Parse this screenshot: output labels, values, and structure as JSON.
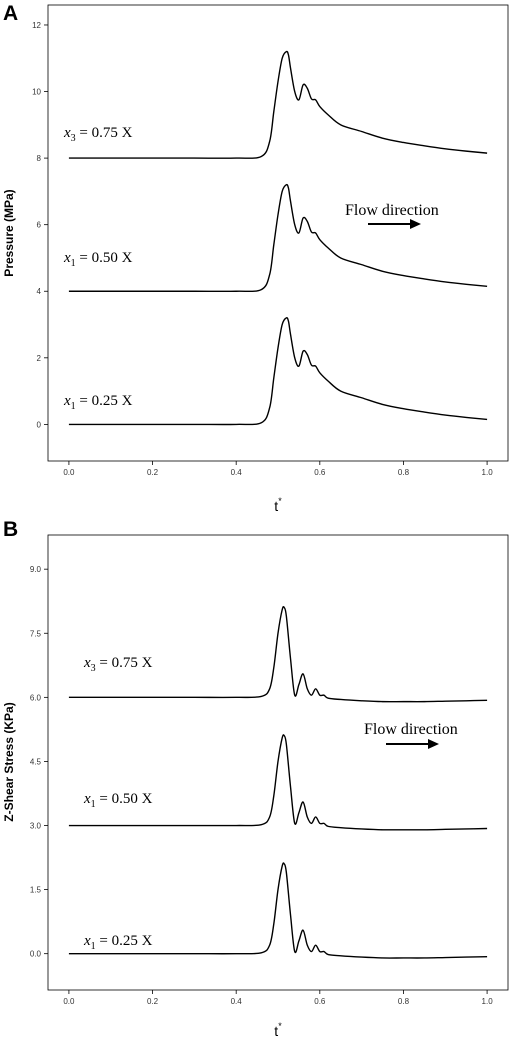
{
  "chart_data": [
    {
      "panel": "A",
      "type": "line",
      "ylabel": "Pressure (MPa)",
      "xlabel": "t",
      "xlabel_superscript": "*",
      "xlim": [
        -0.05,
        1.05
      ],
      "ylim": [
        -1.1,
        12.6
      ],
      "xticks": [
        "0.0",
        "0.2",
        "0.4",
        "0.6",
        "0.8",
        "1.0"
      ],
      "xtick_values": [
        0.0,
        0.2,
        0.4,
        0.6,
        0.8,
        1.0
      ],
      "yticks": [
        "0",
        "2",
        "4",
        "6",
        "8",
        "10",
        "12"
      ],
      "ytick_values": [
        0,
        2,
        4,
        6,
        8,
        10,
        12
      ],
      "grid": false,
      "series": [
        {
          "annotation": {
            "var": "x",
            "sub": "3",
            "rest": " = 0.75 X"
          },
          "x": [
            0.0,
            0.1,
            0.2,
            0.3,
            0.4,
            0.46,
            0.48,
            0.49,
            0.5,
            0.51,
            0.52,
            0.525,
            0.53,
            0.54,
            0.55,
            0.56,
            0.57,
            0.58,
            0.59,
            0.6,
            0.62,
            0.65,
            0.7,
            0.75,
            0.8,
            0.85,
            0.9,
            0.95,
            1.0
          ],
          "y": [
            8.0,
            8.0,
            8.0,
            8.0,
            8.0,
            8.05,
            8.5,
            9.4,
            10.3,
            11.0,
            11.2,
            11.1,
            10.7,
            10.0,
            9.75,
            10.2,
            10.1,
            9.78,
            9.75,
            9.55,
            9.3,
            9.0,
            8.8,
            8.6,
            8.47,
            8.37,
            8.28,
            8.21,
            8.15
          ]
        },
        {
          "annotation": {
            "var": "x",
            "sub": "1",
            "rest": " = 0.50 X"
          },
          "x": [
            0.0,
            0.1,
            0.2,
            0.3,
            0.4,
            0.46,
            0.48,
            0.49,
            0.5,
            0.51,
            0.52,
            0.525,
            0.53,
            0.54,
            0.55,
            0.56,
            0.57,
            0.58,
            0.59,
            0.6,
            0.62,
            0.65,
            0.7,
            0.75,
            0.8,
            0.85,
            0.9,
            0.95,
            1.0
          ],
          "y": [
            4.0,
            4.0,
            4.0,
            4.0,
            4.0,
            4.05,
            4.5,
            5.4,
            6.3,
            7.0,
            7.2,
            7.1,
            6.7,
            6.0,
            5.75,
            6.2,
            6.1,
            5.78,
            5.75,
            5.55,
            5.3,
            5.0,
            4.8,
            4.6,
            4.47,
            4.37,
            4.28,
            4.21,
            4.15
          ]
        },
        {
          "annotation": {
            "var": "x",
            "sub": "1",
            "rest": " = 0.25 X"
          },
          "x": [
            0.0,
            0.1,
            0.2,
            0.3,
            0.4,
            0.46,
            0.48,
            0.49,
            0.5,
            0.51,
            0.52,
            0.525,
            0.53,
            0.54,
            0.55,
            0.56,
            0.57,
            0.58,
            0.59,
            0.6,
            0.62,
            0.65,
            0.7,
            0.75,
            0.8,
            0.85,
            0.9,
            0.95,
            1.0
          ],
          "y": [
            0.0,
            0.0,
            0.0,
            0.0,
            0.0,
            0.05,
            0.5,
            1.4,
            2.3,
            3.0,
            3.2,
            3.1,
            2.7,
            2.0,
            1.75,
            2.2,
            2.1,
            1.78,
            1.75,
            1.55,
            1.3,
            1.0,
            0.8,
            0.6,
            0.47,
            0.37,
            0.28,
            0.21,
            0.15
          ]
        }
      ],
      "flow_label": "Flow direction"
    },
    {
      "panel": "B",
      "type": "line",
      "ylabel": "Z-Shear Stress (KPa)",
      "xlabel": "t",
      "xlabel_superscript": "*",
      "xlim": [
        -0.05,
        1.05
      ],
      "ylim": [
        -0.85,
        9.8
      ],
      "xticks": [
        "0.0",
        "0.2",
        "0.4",
        "0.6",
        "0.8",
        "1.0"
      ],
      "xtick_values": [
        0.0,
        0.2,
        0.4,
        0.6,
        0.8,
        1.0
      ],
      "yticks": [
        "0.0",
        "1.5",
        "3.0",
        "4.5",
        "6.0",
        "7.5",
        "9.0"
      ],
      "ytick_values": [
        0.0,
        1.5,
        3.0,
        4.5,
        6.0,
        7.5,
        9.0
      ],
      "grid": false,
      "series": [
        {
          "annotation": {
            "var": "x",
            "sub": "3",
            "rest": " = 0.75 X"
          },
          "x": [
            0.0,
            0.1,
            0.2,
            0.3,
            0.4,
            0.46,
            0.48,
            0.49,
            0.5,
            0.51,
            0.515,
            0.52,
            0.53,
            0.54,
            0.55,
            0.56,
            0.57,
            0.58,
            0.59,
            0.6,
            0.61,
            0.62,
            0.65,
            0.7,
            0.75,
            0.8,
            0.85,
            0.9,
            0.95,
            1.0
          ],
          "y": [
            6.0,
            6.0,
            6.0,
            6.0,
            6.0,
            6.02,
            6.2,
            6.7,
            7.5,
            8.05,
            8.1,
            7.9,
            6.9,
            6.05,
            6.3,
            6.55,
            6.2,
            6.05,
            6.2,
            6.05,
            6.05,
            5.98,
            5.95,
            5.92,
            5.9,
            5.9,
            5.9,
            5.91,
            5.92,
            5.93
          ]
        },
        {
          "annotation": {
            "var": "x",
            "sub": "1",
            "rest": " = 0.50 X"
          },
          "x": [
            0.0,
            0.1,
            0.2,
            0.3,
            0.4,
            0.46,
            0.48,
            0.49,
            0.5,
            0.51,
            0.515,
            0.52,
            0.53,
            0.54,
            0.55,
            0.56,
            0.57,
            0.58,
            0.59,
            0.6,
            0.61,
            0.62,
            0.65,
            0.7,
            0.75,
            0.8,
            0.85,
            0.9,
            0.95,
            1.0
          ],
          "y": [
            3.0,
            3.0,
            3.0,
            3.0,
            3.0,
            3.02,
            3.2,
            3.7,
            4.5,
            5.05,
            5.1,
            4.9,
            3.9,
            3.05,
            3.3,
            3.55,
            3.2,
            3.05,
            3.2,
            3.05,
            3.05,
            2.98,
            2.95,
            2.92,
            2.9,
            2.9,
            2.9,
            2.91,
            2.92,
            2.93
          ]
        },
        {
          "annotation": {
            "var": "x",
            "sub": "1",
            "rest": " = 0.25 X"
          },
          "x": [
            0.0,
            0.1,
            0.2,
            0.3,
            0.4,
            0.46,
            0.48,
            0.49,
            0.5,
            0.51,
            0.515,
            0.52,
            0.53,
            0.54,
            0.55,
            0.56,
            0.57,
            0.58,
            0.59,
            0.6,
            0.61,
            0.62,
            0.65,
            0.7,
            0.75,
            0.8,
            0.85,
            0.9,
            0.95,
            1.0
          ],
          "y": [
            0.0,
            0.0,
            0.0,
            0.0,
            0.0,
            0.02,
            0.2,
            0.7,
            1.5,
            2.05,
            2.1,
            1.9,
            0.9,
            0.05,
            0.3,
            0.55,
            0.2,
            0.05,
            0.2,
            0.05,
            0.05,
            -0.02,
            -0.05,
            -0.08,
            -0.1,
            -0.1,
            -0.1,
            -0.09,
            -0.08,
            -0.07
          ]
        }
      ],
      "flow_label": "Flow direction"
    }
  ]
}
